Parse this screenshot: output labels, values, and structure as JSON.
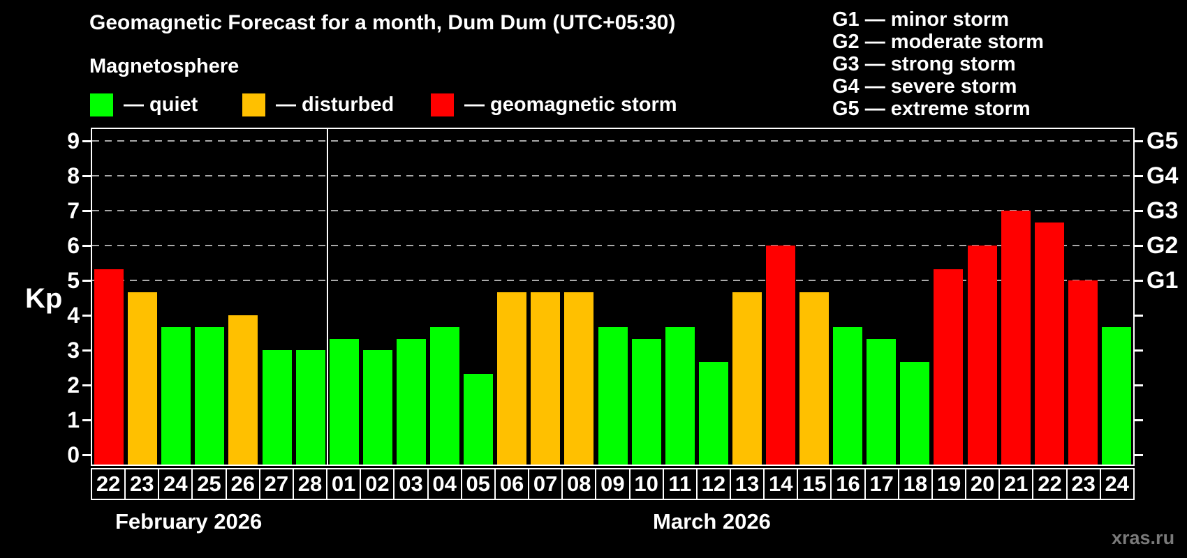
{
  "title": "Geomagnetic Forecast for a month, Dum Dum (UTC+05:30)",
  "subtitle": "Magnetosphere",
  "kp_axis_label": "Kp",
  "watermark": "xras.ru",
  "colors": {
    "quiet": "#00ff00",
    "disturbed": "#ffc000",
    "storm": "#ff0000"
  },
  "legend": [
    {
      "status": "quiet",
      "label": "— quiet"
    },
    {
      "status": "disturbed",
      "label": "— disturbed"
    },
    {
      "status": "storm",
      "label": "— geomagnetic storm"
    }
  ],
  "g_legend": [
    "G1 — minor storm",
    "G2 — moderate storm",
    "G3 — strong storm",
    "G4 — severe storm",
    "G5 — extreme storm"
  ],
  "chart_data": {
    "type": "bar",
    "title": "Geomagnetic Forecast for a month, Dum Dum (UTC+05:30)",
    "ylabel": "Kp",
    "ylim": [
      0,
      9
    ],
    "yticks": [
      0,
      1,
      2,
      3,
      4,
      5,
      6,
      7,
      8,
      9
    ],
    "gridline_values": [
      5,
      6,
      7,
      8,
      9
    ],
    "right_axis_labels": [
      {
        "label": "G1",
        "value": 5
      },
      {
        "label": "G2",
        "value": 6
      },
      {
        "label": "G3",
        "value": 7
      },
      {
        "label": "G4",
        "value": 8
      },
      {
        "label": "G5",
        "value": 9
      }
    ],
    "months": [
      {
        "label": "February 2026",
        "days": 7
      },
      {
        "label": "March 2026",
        "days": 24
      }
    ],
    "categories": [
      "22",
      "23",
      "24",
      "25",
      "26",
      "27",
      "28",
      "01",
      "02",
      "03",
      "04",
      "05",
      "06",
      "07",
      "08",
      "09",
      "10",
      "11",
      "12",
      "13",
      "14",
      "15",
      "16",
      "17",
      "18",
      "19",
      "20",
      "21",
      "22",
      "23",
      "24"
    ],
    "bars": [
      {
        "day": "22",
        "kp": 5.33,
        "status": "storm"
      },
      {
        "day": "23",
        "kp": 4.67,
        "status": "disturbed"
      },
      {
        "day": "24",
        "kp": 3.67,
        "status": "quiet"
      },
      {
        "day": "25",
        "kp": 3.67,
        "status": "quiet"
      },
      {
        "day": "26",
        "kp": 4.0,
        "status": "disturbed"
      },
      {
        "day": "27",
        "kp": 3.0,
        "status": "quiet"
      },
      {
        "day": "28",
        "kp": 3.0,
        "status": "quiet"
      },
      {
        "day": "01",
        "kp": 3.33,
        "status": "quiet"
      },
      {
        "day": "02",
        "kp": 3.0,
        "status": "quiet"
      },
      {
        "day": "03",
        "kp": 3.33,
        "status": "quiet"
      },
      {
        "day": "04",
        "kp": 3.67,
        "status": "quiet"
      },
      {
        "day": "05",
        "kp": 2.33,
        "status": "quiet"
      },
      {
        "day": "06",
        "kp": 4.67,
        "status": "disturbed"
      },
      {
        "day": "07",
        "kp": 4.67,
        "status": "disturbed"
      },
      {
        "day": "08",
        "kp": 4.67,
        "status": "disturbed"
      },
      {
        "day": "09",
        "kp": 3.67,
        "status": "quiet"
      },
      {
        "day": "10",
        "kp": 3.33,
        "status": "quiet"
      },
      {
        "day": "11",
        "kp": 3.67,
        "status": "quiet"
      },
      {
        "day": "12",
        "kp": 2.67,
        "status": "quiet"
      },
      {
        "day": "13",
        "kp": 4.67,
        "status": "disturbed"
      },
      {
        "day": "14",
        "kp": 6.0,
        "status": "storm"
      },
      {
        "day": "15",
        "kp": 4.67,
        "status": "disturbed"
      },
      {
        "day": "16",
        "kp": 3.67,
        "status": "quiet"
      },
      {
        "day": "17",
        "kp": 3.33,
        "status": "quiet"
      },
      {
        "day": "18",
        "kp": 2.67,
        "status": "quiet"
      },
      {
        "day": "19",
        "kp": 5.33,
        "status": "storm"
      },
      {
        "day": "20",
        "kp": 6.0,
        "status": "storm"
      },
      {
        "day": "21",
        "kp": 7.0,
        "status": "storm"
      },
      {
        "day": "22",
        "kp": 6.67,
        "status": "storm"
      },
      {
        "day": "23",
        "kp": 5.0,
        "status": "storm"
      },
      {
        "day": "24",
        "kp": 3.67,
        "status": "quiet"
      }
    ],
    "legend_position": "top",
    "grid": "dashed horizontal at Kp 5-9"
  }
}
